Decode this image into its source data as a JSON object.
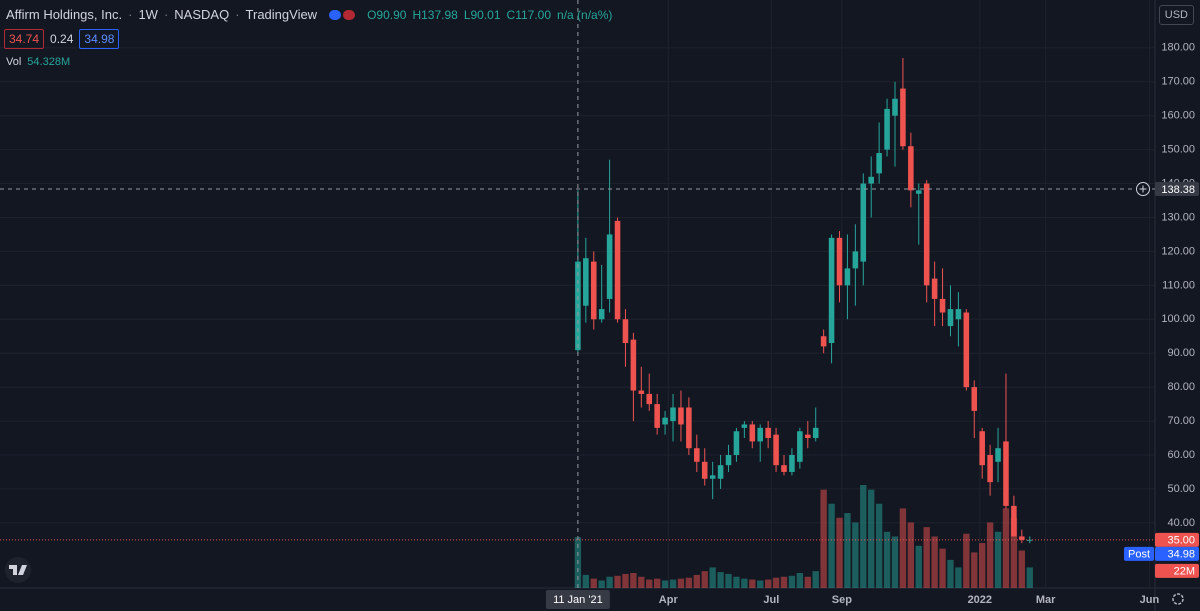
{
  "header": {
    "symbol": "Affirm Holdings, Inc.",
    "interval": "1W",
    "exchange": "NASDAQ",
    "source": "TradingView",
    "open": "O90.90",
    "high": "H137.98",
    "low": "L90.01",
    "close": "C117.00",
    "change": "n/a (n/a%)",
    "bid": 34.74,
    "spread": 0.24,
    "ask": 34.98,
    "volume_title": "Vol",
    "volume_value": "54.328M",
    "currency": "USD"
  },
  "chart_data": {
    "type": "candlestick",
    "categories": [
      null,
      null,
      null,
      null,
      null,
      null,
      null,
      null,
      null,
      null,
      null,
      null,
      null,
      null,
      null,
      null,
      null,
      null,
      null,
      null,
      null,
      null,
      null,
      null,
      null,
      null,
      null,
      null,
      null,
      null,
      null,
      null,
      null,
      null,
      null,
      null,
      null,
      null,
      null,
      null,
      null,
      null,
      null,
      null,
      null,
      null,
      null,
      null,
      null,
      null,
      null,
      null,
      null,
      null,
      null,
      null,
      null,
      null
    ],
    "open": [
      90.9,
      104,
      117,
      100,
      106,
      129,
      100,
      94,
      79,
      78,
      75,
      69,
      70,
      74,
      74,
      62,
      58,
      53,
      53,
      57,
      60,
      68,
      69,
      64,
      68,
      66,
      57,
      55,
      58,
      66,
      65,
      95,
      93,
      124,
      110,
      115,
      117,
      140,
      143,
      150,
      160,
      168,
      151,
      137,
      140,
      112,
      106,
      98,
      100,
      102,
      80,
      67,
      60,
      58,
      64,
      45,
      36,
      35
    ],
    "high": [
      137.98,
      124,
      120,
      116,
      147,
      130,
      103,
      96,
      86,
      84,
      78,
      73,
      78,
      79,
      77,
      66,
      62,
      58,
      60,
      63,
      68,
      70,
      70,
      69,
      70,
      68,
      60,
      62,
      68,
      70,
      74,
      97,
      125,
      126,
      125,
      128,
      143,
      148,
      158,
      165,
      170,
      177,
      155,
      140,
      141,
      117,
      115,
      110,
      108,
      103,
      82,
      68,
      63,
      68,
      84,
      48,
      38,
      36
    ],
    "low": [
      90.01,
      99,
      97,
      99,
      102,
      99,
      86,
      70,
      74,
      73,
      66,
      66,
      64,
      64,
      60,
      55,
      51,
      47,
      50,
      55,
      58,
      65,
      62,
      58,
      62,
      55,
      54,
      54,
      56,
      62,
      64,
      90,
      87,
      105,
      100,
      104,
      110,
      130,
      140,
      148,
      145,
      150,
      133,
      122,
      105,
      98,
      98,
      95,
      92,
      79,
      65,
      53,
      48,
      52,
      44,
      36,
      34,
      34
    ],
    "close": [
      117,
      118,
      100,
      103,
      125,
      100,
      93,
      79,
      78,
      75,
      68,
      71,
      74,
      69,
      62,
      58,
      53,
      54,
      57,
      60,
      67,
      69,
      64,
      68,
      65,
      57,
      55,
      60,
      67,
      65,
      68,
      92,
      124,
      110,
      115,
      120,
      140,
      142,
      149,
      162,
      165,
      151,
      138,
      138,
      110,
      106,
      102,
      103,
      103,
      80,
      73,
      57,
      52,
      62,
      45,
      36,
      35,
      35
    ],
    "volume": [
      54.328,
      14,
      10,
      8,
      12,
      13,
      15,
      16,
      12,
      9,
      10,
      8,
      9,
      10,
      11,
      14,
      18,
      22,
      17,
      15,
      12,
      10,
      9,
      8,
      9,
      11,
      12,
      13,
      16,
      12,
      18,
      105,
      90,
      75,
      80,
      70,
      110,
      105,
      90,
      60,
      55,
      85,
      70,
      45,
      65,
      55,
      42,
      30,
      22,
      58,
      38,
      48,
      70,
      60,
      85,
      75,
      40,
      22
    ],
    "up_color": "#26a69a",
    "down_color": "#ef5350",
    "ylim": [
      20.8,
      194.1
    ],
    "yticks": [
      {
        "value": 40,
        "label": "40.00"
      },
      {
        "value": 50,
        "label": "50.00"
      },
      {
        "value": 60,
        "label": "60.00"
      },
      {
        "value": 70,
        "label": "70.00"
      },
      {
        "value": 80,
        "label": "80.00"
      },
      {
        "value": 90,
        "label": "90.00"
      },
      {
        "value": 100,
        "label": "100.00"
      },
      {
        "value": 110,
        "label": "110.00"
      },
      {
        "value": 120,
        "label": "120.00"
      },
      {
        "value": 130,
        "label": "130.00"
      },
      {
        "value": 140,
        "label": "140.00"
      },
      {
        "value": 150,
        "label": "150.00"
      },
      {
        "value": 160,
        "label": "160.00"
      },
      {
        "value": 170,
        "label": "170.00"
      },
      {
        "value": 180,
        "label": "180.00"
      }
    ],
    "xlim": [
      -72.9,
      72.8
    ],
    "xticks": [
      {
        "value": 11.4,
        "label": "Apr"
      },
      {
        "value": 24.4,
        "label": "Jul"
      },
      {
        "value": 33.3,
        "label": "Sep"
      },
      {
        "value": 50.7,
        "label": "2022"
      },
      {
        "value": 59.0,
        "label": "Mar"
      },
      {
        "value": 72.1,
        "label": "Jun"
      }
    ],
    "grid": true,
    "crosshair": {
      "x": 0,
      "x_label": "11 Jan '21",
      "price": 138.38
    },
    "last_price": {
      "value": 35,
      "label": "35.00"
    },
    "post": {
      "label": "Post",
      "value": 34.98
    },
    "last_volume": {
      "value": 22,
      "label": "22M"
    }
  }
}
